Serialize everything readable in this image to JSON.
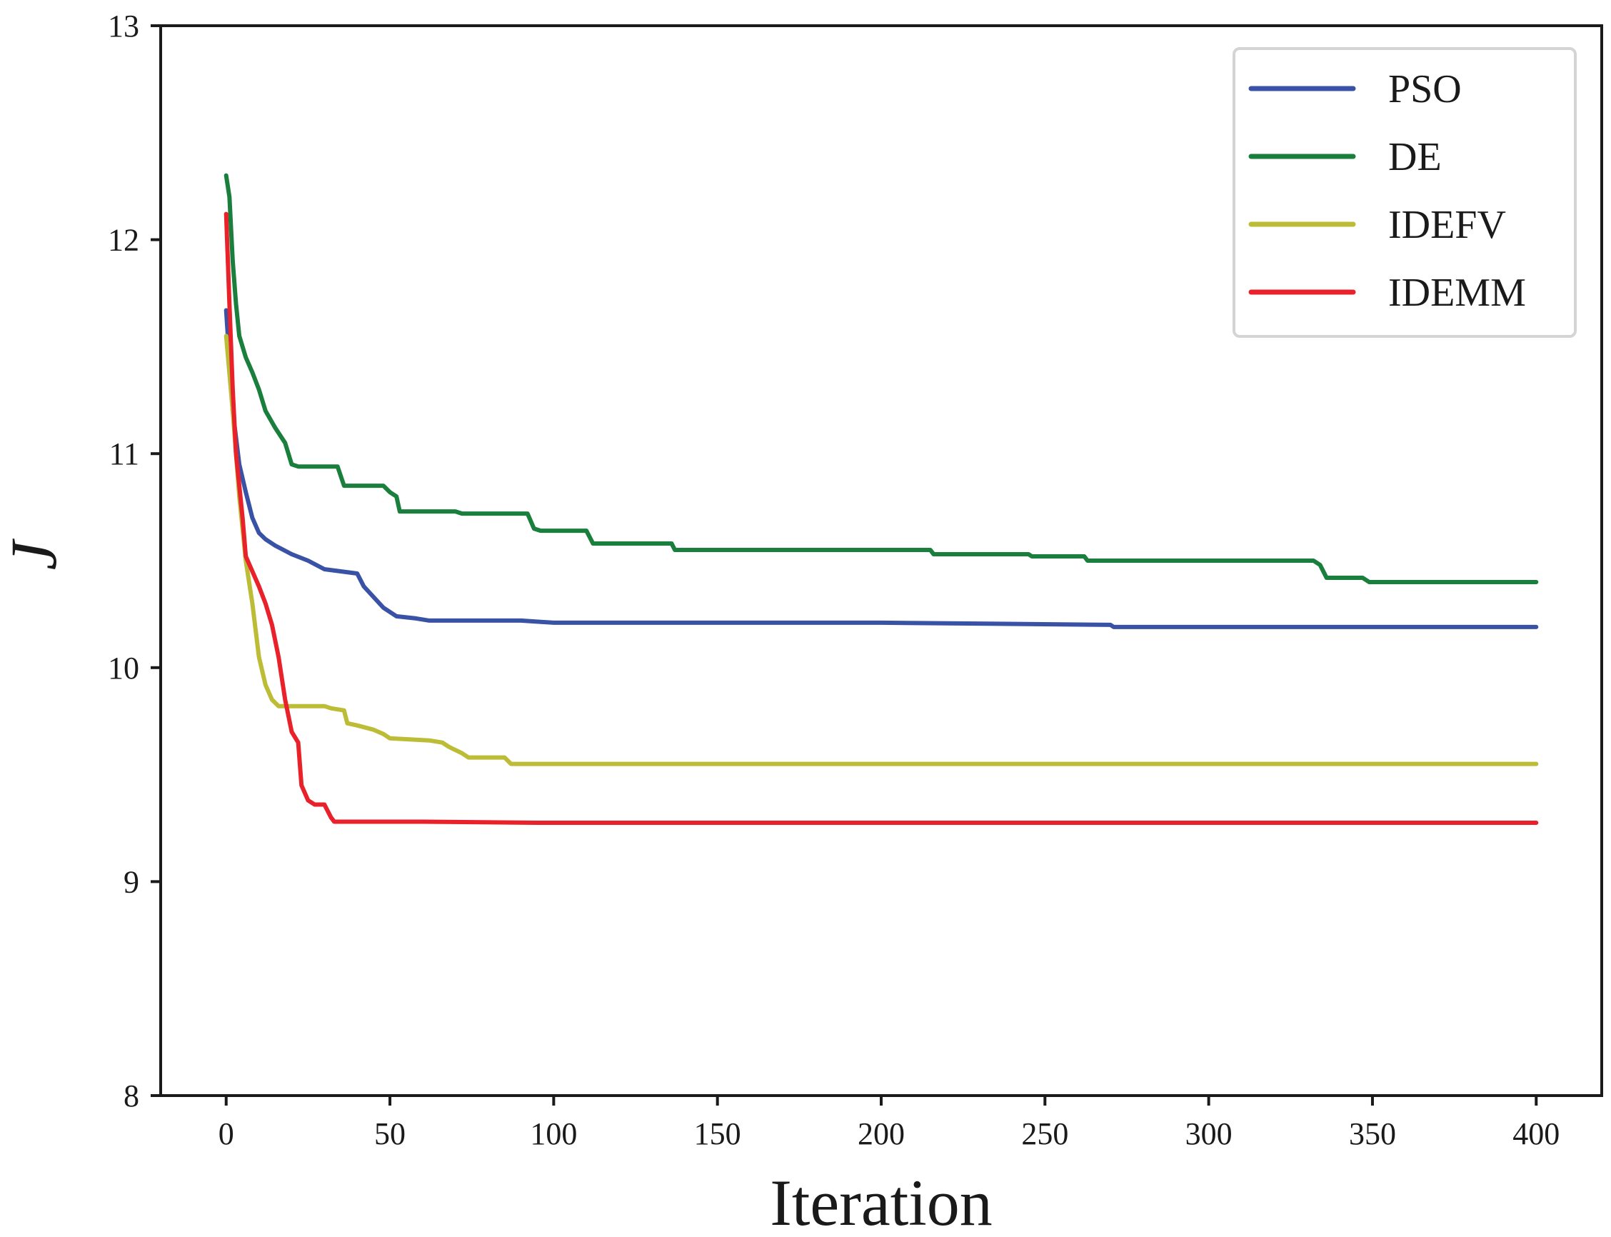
{
  "chart_data": {
    "type": "line",
    "xlabel": "Iteration",
    "ylabel": "J",
    "xlim": [
      -20,
      420
    ],
    "ylim": [
      8,
      13
    ],
    "xticks": [
      0,
      50,
      100,
      150,
      200,
      250,
      300,
      350,
      400
    ],
    "yticks": [
      8,
      9,
      10,
      11,
      12,
      13
    ],
    "grid": false,
    "legend_position": "top-right",
    "series": [
      {
        "name": "PSO",
        "color": "#3a52a6",
        "points": [
          [
            0,
            11.67
          ],
          [
            2,
            11.2
          ],
          [
            4,
            10.95
          ],
          [
            6,
            10.82
          ],
          [
            8,
            10.7
          ],
          [
            10,
            10.63
          ],
          [
            12,
            10.6
          ],
          [
            15,
            10.57
          ],
          [
            20,
            10.53
          ],
          [
            25,
            10.5
          ],
          [
            30,
            10.46
          ],
          [
            35,
            10.45
          ],
          [
            40,
            10.44
          ],
          [
            42,
            10.38
          ],
          [
            45,
            10.33
          ],
          [
            48,
            10.28
          ],
          [
            52,
            10.24
          ],
          [
            58,
            10.23
          ],
          [
            62,
            10.22
          ],
          [
            90,
            10.22
          ],
          [
            100,
            10.21
          ],
          [
            200,
            10.21
          ],
          [
            270,
            10.2
          ],
          [
            271,
            10.19
          ],
          [
            400,
            10.19
          ]
        ]
      },
      {
        "name": "DE",
        "color": "#1a7f3c",
        "points": [
          [
            0,
            12.3
          ],
          [
            1,
            12.2
          ],
          [
            2,
            11.9
          ],
          [
            3,
            11.7
          ],
          [
            4,
            11.55
          ],
          [
            6,
            11.45
          ],
          [
            8,
            11.38
          ],
          [
            10,
            11.3
          ],
          [
            12,
            11.2
          ],
          [
            15,
            11.12
          ],
          [
            18,
            11.05
          ],
          [
            20,
            10.95
          ],
          [
            22,
            10.94
          ],
          [
            34,
            10.94
          ],
          [
            36,
            10.85
          ],
          [
            48,
            10.85
          ],
          [
            50,
            10.82
          ],
          [
            52,
            10.8
          ],
          [
            53,
            10.73
          ],
          [
            70,
            10.73
          ],
          [
            72,
            10.72
          ],
          [
            92,
            10.72
          ],
          [
            94,
            10.65
          ],
          [
            96,
            10.64
          ],
          [
            110,
            10.64
          ],
          [
            112,
            10.58
          ],
          [
            136,
            10.58
          ],
          [
            137,
            10.55
          ],
          [
            215,
            10.55
          ],
          [
            216,
            10.53
          ],
          [
            245,
            10.53
          ],
          [
            246,
            10.52
          ],
          [
            262,
            10.52
          ],
          [
            263,
            10.5
          ],
          [
            332,
            10.5
          ],
          [
            334,
            10.48
          ],
          [
            336,
            10.42
          ],
          [
            347,
            10.42
          ],
          [
            349,
            10.4
          ],
          [
            400,
            10.4
          ]
        ]
      },
      {
        "name": "IDEFV",
        "color": "#bcbc36",
        "points": [
          [
            0,
            11.55
          ],
          [
            2,
            11.2
          ],
          [
            4,
            10.8
          ],
          [
            6,
            10.5
          ],
          [
            8,
            10.3
          ],
          [
            10,
            10.05
          ],
          [
            12,
            9.92
          ],
          [
            14,
            9.85
          ],
          [
            16,
            9.82
          ],
          [
            30,
            9.82
          ],
          [
            32,
            9.81
          ],
          [
            36,
            9.8
          ],
          [
            37,
            9.74
          ],
          [
            40,
            9.73
          ],
          [
            45,
            9.71
          ],
          [
            48,
            9.69
          ],
          [
            50,
            9.67
          ],
          [
            62,
            9.66
          ],
          [
            66,
            9.65
          ],
          [
            68,
            9.63
          ],
          [
            72,
            9.6
          ],
          [
            74,
            9.58
          ],
          [
            85,
            9.58
          ],
          [
            87,
            9.55
          ],
          [
            400,
            9.55
          ]
        ]
      },
      {
        "name": "IDEMM",
        "color": "#e8212a",
        "points": [
          [
            0,
            12.12
          ],
          [
            1,
            11.7
          ],
          [
            2,
            11.3
          ],
          [
            3,
            11.0
          ],
          [
            4,
            10.85
          ],
          [
            5,
            10.7
          ],
          [
            6,
            10.52
          ],
          [
            8,
            10.45
          ],
          [
            10,
            10.38
          ],
          [
            12,
            10.3
          ],
          [
            14,
            10.2
          ],
          [
            16,
            10.05
          ],
          [
            18,
            9.85
          ],
          [
            20,
            9.7
          ],
          [
            22,
            9.65
          ],
          [
            23,
            9.45
          ],
          [
            25,
            9.38
          ],
          [
            27,
            9.36
          ],
          [
            30,
            9.36
          ],
          [
            32,
            9.3
          ],
          [
            33,
            9.28
          ],
          [
            60,
            9.28
          ],
          [
            95,
            9.275
          ],
          [
            400,
            9.275
          ]
        ]
      }
    ]
  }
}
